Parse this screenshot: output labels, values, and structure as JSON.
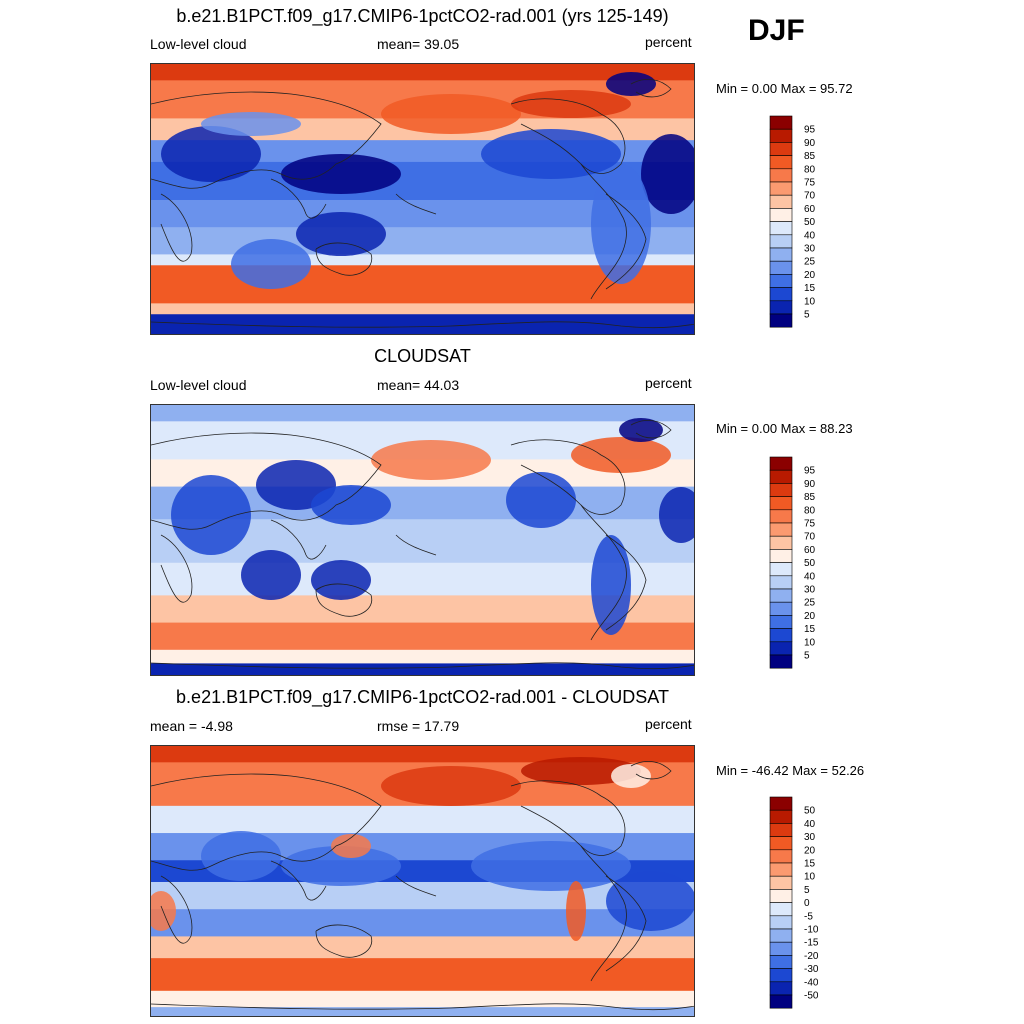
{
  "season": "DJF",
  "panels": [
    {
      "title": "b.e21.B1PCT.f09_g17.CMIP6-1pctCO2-rad.001 (yrs 125-149)",
      "left_label": "Low-level cloud",
      "center_label": "mean=  39.05",
      "right_label": "percent",
      "minmax": "Min =   0.00 Max =  95.72",
      "variant": "model",
      "colorbar": {
        "labels": [
          "95",
          "90",
          "85",
          "80",
          "75",
          "70",
          "60",
          "50",
          "40",
          "30",
          "25",
          "20",
          "15",
          "10",
          "5"
        ],
        "colors": [
          "#8b0000",
          "#b81a00",
          "#dc3a10",
          "#f15a24",
          "#f7794a",
          "#fb9a70",
          "#fdc4a4",
          "#fff0e6",
          "#dde9fb",
          "#b8cff5",
          "#8fb0f0",
          "#6a92ec",
          "#3f6fe4",
          "#1c48d2",
          "#0a24b0",
          "#000080"
        ]
      }
    },
    {
      "title": "CLOUDSAT",
      "left_label": "Low-level cloud",
      "center_label": "mean=  44.03",
      "right_label": "percent",
      "minmax": "Min =   0.00 Max =  88.23",
      "variant": "obs",
      "colorbar": {
        "labels": [
          "95",
          "90",
          "85",
          "80",
          "75",
          "70",
          "60",
          "50",
          "40",
          "30",
          "25",
          "20",
          "15",
          "10",
          "5"
        ],
        "colors": [
          "#8b0000",
          "#b81a00",
          "#dc3a10",
          "#f15a24",
          "#f7794a",
          "#fb9a70",
          "#fdc4a4",
          "#fff0e6",
          "#dde9fb",
          "#b8cff5",
          "#8fb0f0",
          "#6a92ec",
          "#3f6fe4",
          "#1c48d2",
          "#0a24b0",
          "#000080"
        ]
      }
    },
    {
      "title": "b.e21.B1PCT.f09_g17.CMIP6-1pctCO2-rad.001 - CLOUDSAT",
      "left_label": "mean =  -4.98",
      "center_label": "rmse =  17.79",
      "right_label": "percent",
      "minmax": "Min = -46.42 Max =  52.26",
      "variant": "diff",
      "colorbar": {
        "labels": [
          "50",
          "40",
          "30",
          "20",
          "15",
          "10",
          "5",
          "0",
          "-5",
          "-10",
          "-15",
          "-20",
          "-30",
          "-40",
          "-50"
        ],
        "colors": [
          "#8b0000",
          "#b81a00",
          "#dc3a10",
          "#f15a24",
          "#f7794a",
          "#fb9a70",
          "#fdc4a4",
          "#fff0e6",
          "#dde9fb",
          "#b8cff5",
          "#8fb0f0",
          "#6a92ec",
          "#3f6fe4",
          "#1c48d2",
          "#0a24b0",
          "#000080"
        ]
      }
    }
  ]
}
